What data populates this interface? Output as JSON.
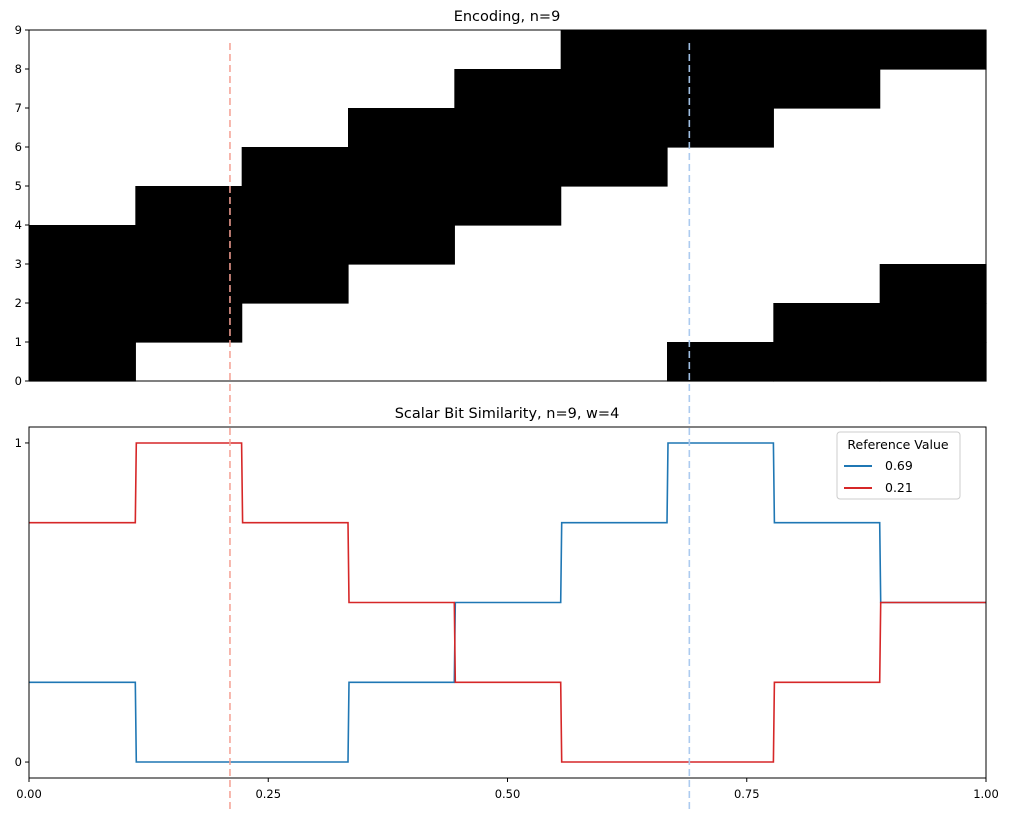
{
  "chart_data": [
    {
      "type": "heatmap",
      "title": "Encoding, n=9",
      "n": 9,
      "w": 4,
      "x_bins": 9,
      "xlim": [
        0,
        1
      ],
      "ylim": [
        0,
        9
      ],
      "yticks": [
        "0",
        "1",
        "2",
        "3",
        "4",
        "5",
        "6",
        "7",
        "8",
        "9"
      ],
      "active_bits_per_bin": [
        [
          0,
          1,
          2,
          3
        ],
        [
          1,
          2,
          3,
          4
        ],
        [
          2,
          3,
          4,
          5
        ],
        [
          3,
          4,
          5,
          6
        ],
        [
          4,
          5,
          6,
          7
        ],
        [
          5,
          6,
          7,
          8
        ],
        [
          6,
          7,
          8,
          0
        ],
        [
          7,
          8,
          0,
          1
        ],
        [
          8,
          0,
          1,
          2
        ]
      ],
      "on_color": "#000000",
      "off_color": "#ffffff"
    },
    {
      "type": "line",
      "title": "Scalar Bit Similarity, n=9, w=4",
      "xlim": [
        0,
        1
      ],
      "ylim": [
        -0.05,
        1.05
      ],
      "xticks": [
        "0.00",
        "0.25",
        "0.50",
        "0.75",
        "1.00"
      ],
      "xtick_values": [
        0,
        0.25,
        0.5,
        0.75,
        1.0
      ],
      "yticks": [
        "0",
        "1"
      ],
      "ytick_values": [
        0,
        1
      ],
      "legend": {
        "title": "Reference Value",
        "placement": "upper right"
      },
      "bin_edges": [
        0,
        0.1111,
        0.2222,
        0.3333,
        0.4444,
        0.5556,
        0.6667,
        0.7778,
        0.8889,
        1.0
      ],
      "series": [
        {
          "name": "0.69",
          "color": "#1f77b4",
          "reference": 0.69,
          "values": [
            0.25,
            0,
            0,
            0.25,
            0.5,
            0.75,
            1,
            0.75,
            0.5
          ]
        },
        {
          "name": "0.21",
          "color": "#d62728",
          "reference": 0.21,
          "values": [
            0.75,
            1,
            0.75,
            0.5,
            0.25,
            0,
            0,
            0.25,
            0.5
          ]
        }
      ],
      "reference_lines": [
        {
          "x": 0.21,
          "color": "#f4a093"
        },
        {
          "x": 0.69,
          "color": "#a8c8ee"
        }
      ]
    }
  ]
}
